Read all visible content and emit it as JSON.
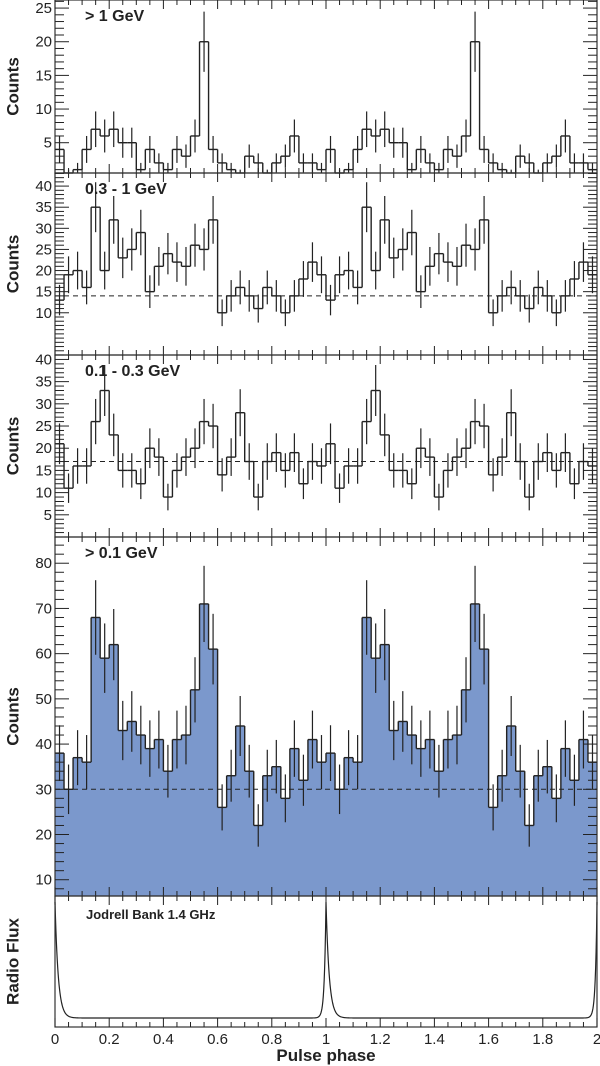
{
  "chart_data": {
    "type": "bar",
    "xlabel": "Pulse phase",
    "xlim": [
      0,
      2
    ],
    "x_tick_labels": [
      "0",
      "0.2",
      "0.4",
      "0.6",
      "0.8",
      "1",
      "1.2",
      "1.4",
      "1.6",
      "1.8",
      "2"
    ],
    "bins_per_cycle": 30,
    "fill_color": "#7b98cc",
    "panels": [
      {
        "label": "> 1 GeV",
        "ylabel": "Counts",
        "ylim": [
          0.5,
          26.2
        ],
        "yticks": [
          5,
          10,
          15,
          20,
          25
        ],
        "minor_step": 1,
        "filled": false,
        "baseline": null,
        "values": [
          4,
          0,
          1,
          4,
          7,
          6,
          7,
          5,
          5,
          1,
          4,
          2,
          1,
          4,
          3,
          6,
          20,
          4,
          2,
          1,
          0,
          3,
          2,
          0,
          2,
          3,
          6,
          2,
          2,
          1
        ]
      },
      {
        "label": "0.3 - 1 GeV",
        "ylabel": "Counts",
        "ylim": [
          0,
          43.1
        ],
        "yticks": [
          10,
          15,
          20,
          25,
          30,
          35,
          40
        ],
        "minor_step": 1,
        "filled": false,
        "baseline": 14,
        "values": [
          13,
          19,
          20,
          16,
          35,
          20,
          32,
          23,
          25,
          29,
          15,
          21,
          24,
          22,
          21,
          26,
          25,
          32,
          10,
          14,
          16,
          14,
          11,
          16,
          14,
          10,
          14,
          18,
          22,
          19
        ]
      },
      {
        "label": "0.1 - 0.3 GeV",
        "ylabel": "Counts",
        "ylim": [
          0,
          41
        ],
        "yticks": [
          5,
          10,
          15,
          20,
          25,
          30,
          35,
          40
        ],
        "minor_step": 1,
        "filled": false,
        "baseline": 17,
        "values": [
          21,
          11,
          16,
          16,
          26,
          33,
          23,
          15,
          15,
          12,
          20,
          18,
          9,
          15,
          18,
          20,
          26,
          25,
          14,
          18,
          28,
          17,
          9,
          17,
          19,
          15,
          19,
          12,
          17,
          16
        ]
      },
      {
        "label": "> 0.1 GeV",
        "ylabel": "Counts",
        "ylim": [
          6.4,
          85.8
        ],
        "yticks": [
          10,
          20,
          30,
          40,
          50,
          60,
          70,
          80
        ],
        "minor_step": 2,
        "filled": true,
        "baseline": 30,
        "values": [
          38,
          30,
          37,
          36,
          68,
          59,
          62,
          43,
          45,
          42,
          39,
          41,
          34,
          41,
          42,
          52,
          71,
          61,
          26,
          33,
          44,
          34,
          22,
          33,
          35,
          28,
          39,
          32,
          41,
          36
        ]
      }
    ],
    "radio": {
      "label": "Jodrell Bank 1.4 GHz",
      "ylabel": "Radio Flux",
      "peak_phases": [
        0,
        1,
        2
      ],
      "baseline_fraction": 0.05
    }
  }
}
